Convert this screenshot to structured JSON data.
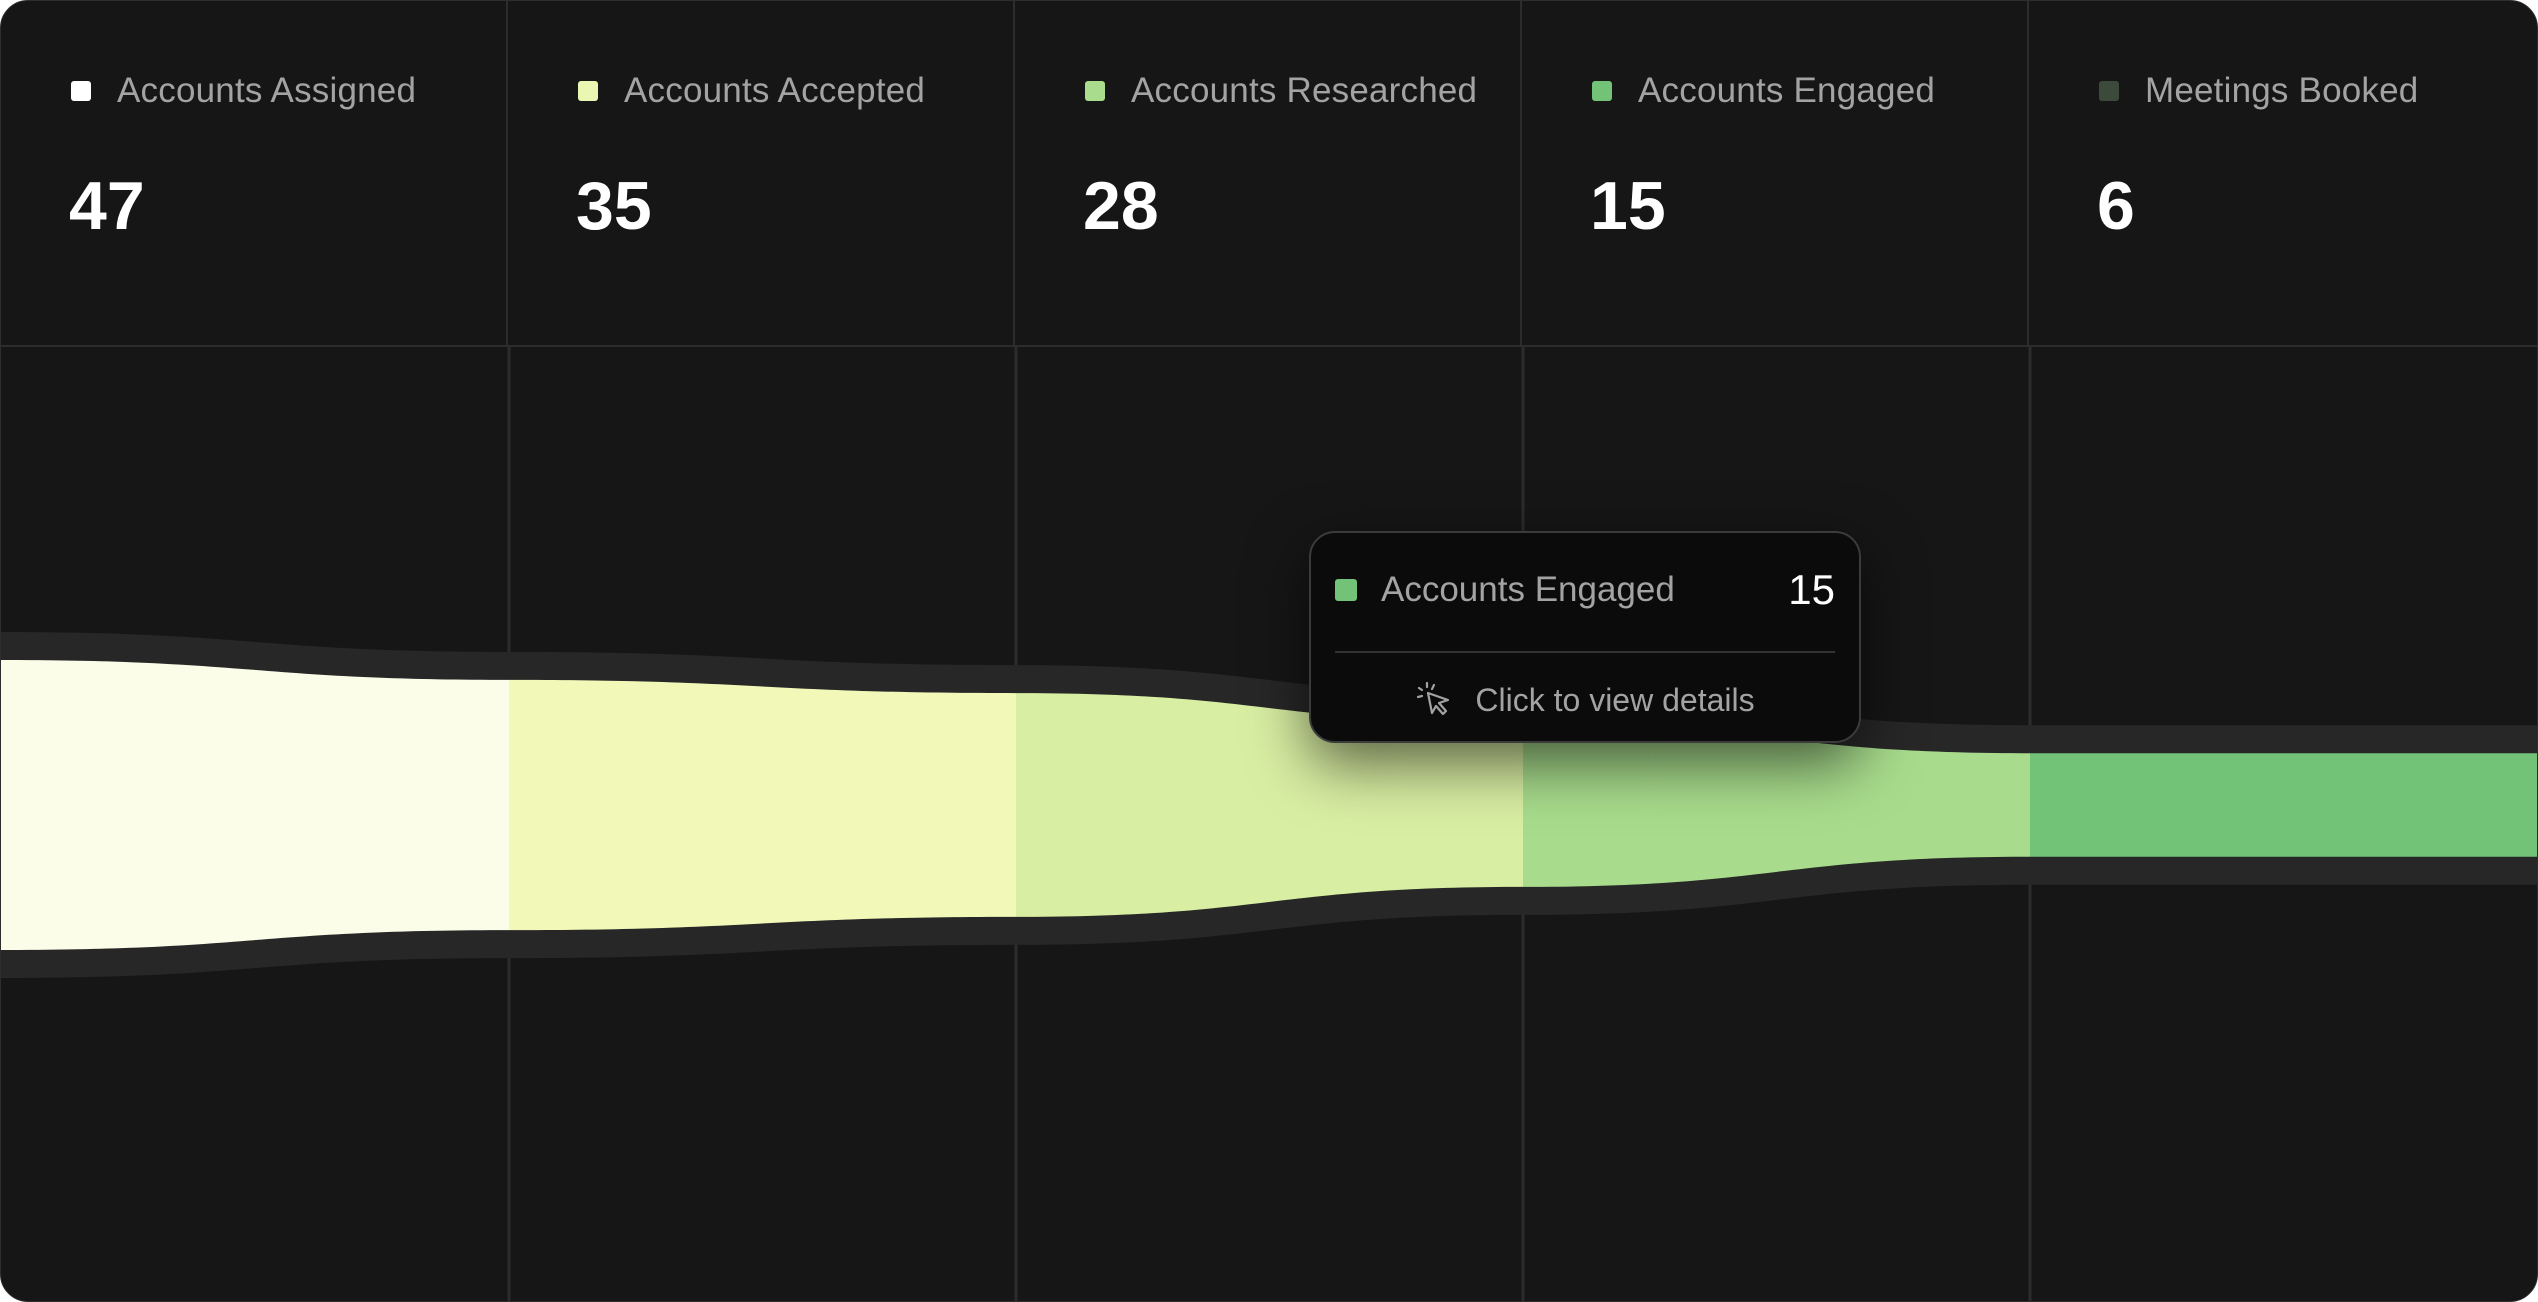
{
  "stages": [
    {
      "label": "Accounts Assigned",
      "value": "47",
      "color": "#fcfde9"
    },
    {
      "label": "Accounts Accepted",
      "value": "35",
      "color": "#f2f9b8"
    },
    {
      "label": "Accounts Researched",
      "value": "28",
      "color": "#d8eea2"
    },
    {
      "label": "Accounts Engaged",
      "value": "15",
      "color": "#a8dc8c"
    },
    {
      "label": "Meetings Booked",
      "value": "6",
      "color": "#72c278"
    }
  ],
  "legend_swatches": [
    "#ffffff",
    "#eaf7b2",
    "#a9dc8d",
    "#72c278",
    "#3c4a3c"
  ],
  "tooltip": {
    "label": "Accounts Engaged",
    "value": "15",
    "swatch_color": "#72c278",
    "action_label": "Click to view details",
    "icon": "pointer-click-icon"
  },
  "chart_data": {
    "type": "funnel",
    "categories": [
      "Accounts Assigned",
      "Accounts Accepted",
      "Accounts Researched",
      "Accounts Engaged",
      "Meetings Booked"
    ],
    "values": [
      47,
      35,
      28,
      15,
      6
    ]
  }
}
